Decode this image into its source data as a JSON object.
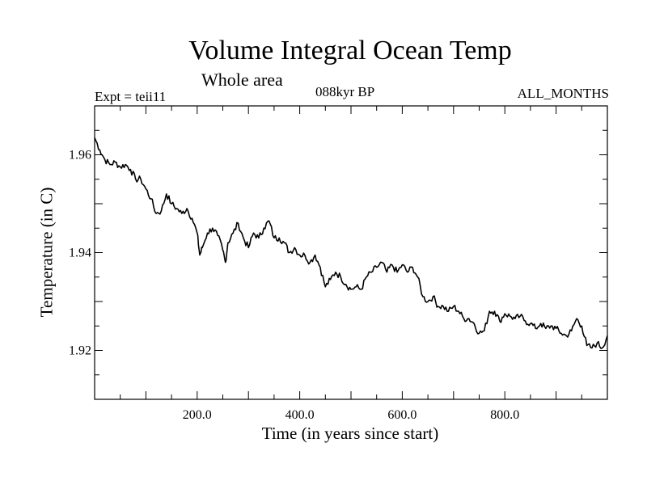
{
  "title": "Volume Integral Ocean Temp",
  "subtitle": "Whole area",
  "header_left": "Expt = teii11",
  "header_center": "088kyr BP",
  "header_right": "ALL_MONTHS",
  "chart_data": {
    "type": "line",
    "title": "Volume Integral Ocean Temp",
    "subtitle": "Whole area",
    "xlabel": "Time (in years since start)",
    "ylabel": "Temperature (in C)",
    "xlim": [
      0,
      1000
    ],
    "ylim": [
      1.91,
      1.97
    ],
    "xticks": [
      200,
      400,
      600,
      800
    ],
    "xtick_labels": [
      "200.0",
      "400.0",
      "600.0",
      "800.0"
    ],
    "yticks": [
      1.92,
      1.94,
      1.96
    ],
    "ytick_labels": [
      "1.92",
      "1.94",
      "1.96"
    ],
    "grid": false,
    "line_color": "#000000",
    "series": [
      {
        "x": [
          0,
          10,
          20,
          30,
          40,
          50,
          60,
          70,
          80,
          90,
          100,
          110,
          120,
          130,
          140,
          150,
          160,
          170,
          180,
          190,
          200,
          205,
          210,
          220,
          230,
          240,
          250,
          255,
          260,
          270,
          280,
          290,
          300,
          310,
          320,
          330,
          340,
          350,
          360,
          370,
          380,
          390,
          400,
          410,
          420,
          430,
          440,
          450,
          460,
          470,
          480,
          490,
          500,
          510,
          520,
          530,
          540,
          550,
          560,
          570,
          580,
          590,
          600,
          610,
          620,
          630,
          640,
          650,
          660,
          670,
          680,
          690,
          700,
          710,
          720,
          730,
          740,
          750,
          760,
          770,
          780,
          790,
          800,
          810,
          820,
          830,
          840,
          850,
          860,
          870,
          880,
          890,
          900,
          910,
          920,
          930,
          940,
          950,
          960,
          970,
          980,
          990,
          1000
        ],
        "y": [
          1.9635,
          1.961,
          1.959,
          1.958,
          1.9585,
          1.9575,
          1.958,
          1.957,
          1.955,
          1.955,
          1.953,
          1.951,
          1.948,
          1.9485,
          1.952,
          1.95,
          1.949,
          1.948,
          1.949,
          1.947,
          1.944,
          1.9395,
          1.941,
          1.944,
          1.945,
          1.9435,
          1.9405,
          1.938,
          1.942,
          1.944,
          1.946,
          1.943,
          1.941,
          1.944,
          1.943,
          1.945,
          1.9465,
          1.943,
          1.943,
          1.942,
          1.94,
          1.941,
          1.9395,
          1.9395,
          1.938,
          1.9395,
          1.937,
          1.933,
          1.9345,
          1.936,
          1.935,
          1.9335,
          1.9325,
          1.933,
          1.9325,
          1.935,
          1.936,
          1.937,
          1.938,
          1.936,
          1.9375,
          1.936,
          1.9375,
          1.936,
          1.937,
          1.935,
          1.931,
          1.93,
          1.931,
          1.929,
          1.929,
          1.928,
          1.929,
          1.928,
          1.9265,
          1.9265,
          1.9255,
          1.9235,
          1.924,
          1.928,
          1.928,
          1.926,
          1.9275,
          1.927,
          1.9265,
          1.927,
          1.926,
          1.9255,
          1.9245,
          1.9255,
          1.9245,
          1.925,
          1.9245,
          1.9235,
          1.923,
          1.924,
          1.9265,
          1.925,
          1.921,
          1.9205,
          1.9215,
          1.9205,
          1.923
        ]
      }
    ]
  }
}
